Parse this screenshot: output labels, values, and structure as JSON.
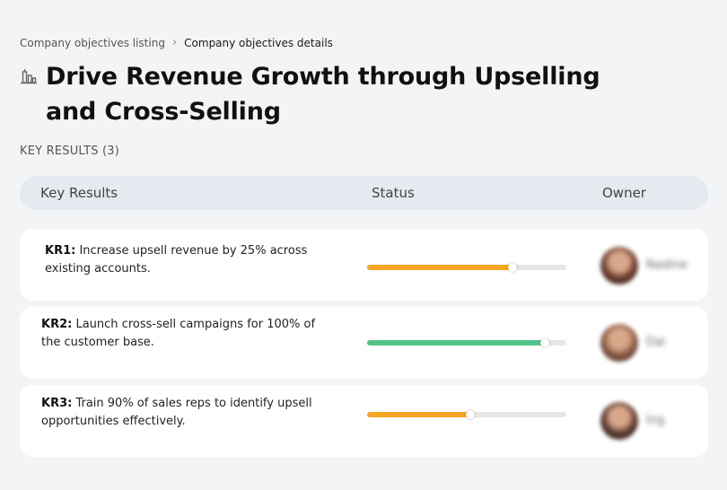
{
  "breadcrumb": {
    "parent": "Company objectives listing",
    "separator": "›",
    "current": "Company objectives details"
  },
  "page": {
    "icon": "building-chart-icon",
    "title": "Drive Revenue Growth through Upselling and Cross-Selling"
  },
  "key_results_label": "KEY RESULTS (3)",
  "table": {
    "columns": [
      "Key Results",
      "Status",
      "Owner"
    ],
    "rows": [
      {
        "id": "KR1:",
        "text": " Increase upsell revenue by 25% across existing accounts.",
        "progress": 0.73,
        "progress_color": "#f5a623",
        "owner": "Nadine",
        "avatar_color": "#6b3a2e"
      },
      {
        "id": "KR2:",
        "text": " Launch cross-sell campaigns for 100% of the customer base.",
        "progress": 0.89,
        "progress_color": "#52c48a",
        "owner": "Dai",
        "avatar_color": "#8a5a44"
      },
      {
        "id": "KR3:",
        "text": " Train 90% of sales reps to identify upsell opportunities effectively.",
        "progress": 0.52,
        "progress_color": "#f5a623",
        "owner": "Ing",
        "avatar_color": "#5a3a30"
      }
    ]
  }
}
